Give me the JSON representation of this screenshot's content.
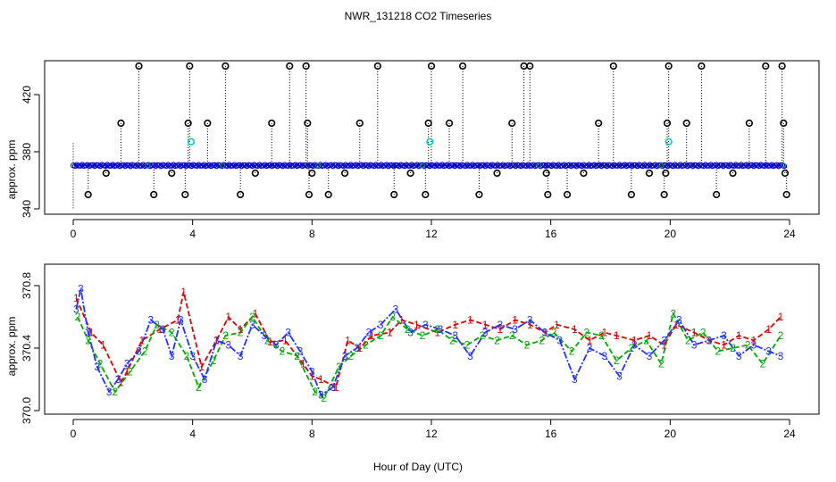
{
  "title": "NWR_131218  CO2 Timeseries",
  "xlabel": "Hour of Day (UTC)",
  "colors": {
    "black": "#000000",
    "blue": "#0000cc",
    "cyan": "#00cccc",
    "green": "#00aa00",
    "red": "#dd0000",
    "lineblue": "#2233ff"
  },
  "chart_data": [
    {
      "type": "scatter",
      "ylabel": "approx. ppm",
      "xlim": [
        0,
        24
      ],
      "ylim": [
        340,
        440
      ],
      "x_ticks": [
        "0",
        "4",
        "8",
        "12",
        "16",
        "20",
        "24"
      ],
      "y_ticks": [
        "340",
        "380",
        "420"
      ],
      "baseline": 370.4,
      "series": [
        {
          "points": [
            [
              0.5,
              350
            ],
            [
              1.1,
              365
            ],
            [
              1.6,
              400
            ],
            [
              2.2,
              440
            ],
            [
              2.7,
              350
            ],
            [
              3.3,
              365
            ],
            [
              3.75,
              350
            ],
            [
              3.85,
              400
            ],
            [
              3.9,
              440
            ],
            [
              4.5,
              400
            ],
            [
              5.1,
              440
            ],
            [
              5.6,
              350
            ],
            [
              6.1,
              365
            ],
            [
              6.65,
              400
            ],
            [
              7.25,
              440
            ],
            [
              7.8,
              440
            ],
            [
              7.85,
              400
            ],
            [
              7.9,
              350
            ],
            [
              8.0,
              365
            ],
            [
              8.55,
              350
            ],
            [
              9.1,
              365
            ],
            [
              9.6,
              400
            ],
            [
              10.2,
              440
            ],
            [
              10.75,
              350
            ],
            [
              11.3,
              365
            ],
            [
              11.8,
              350
            ],
            [
              11.9,
              400
            ],
            [
              12.0,
              440
            ],
            [
              12.6,
              400
            ],
            [
              13.05,
              440
            ],
            [
              13.6,
              350
            ],
            [
              14.2,
              365
            ],
            [
              14.7,
              400
            ],
            [
              15.1,
              440
            ],
            [
              15.3,
              440
            ],
            [
              15.85,
              365
            ],
            [
              15.9,
              350
            ],
            [
              16.55,
              350
            ],
            [
              17.1,
              365
            ],
            [
              17.6,
              400
            ],
            [
              18.1,
              440
            ],
            [
              18.7,
              350
            ],
            [
              19.3,
              365
            ],
            [
              19.8,
              350
            ],
            [
              19.85,
              365
            ],
            [
              19.9,
              400
            ],
            [
              19.95,
              440
            ],
            [
              20.55,
              400
            ],
            [
              21.05,
              440
            ],
            [
              21.55,
              350
            ],
            [
              22.1,
              365
            ],
            [
              22.65,
              400
            ],
            [
              23.2,
              440
            ],
            [
              23.75,
              440
            ],
            [
              23.8,
              400
            ],
            [
              23.85,
              365
            ],
            [
              23.9,
              350
            ]
          ]
        },
        {
          "points": [
            [
              3.95,
              387
            ],
            [
              11.95,
              387
            ],
            [
              19.95,
              387
            ]
          ]
        }
      ]
    },
    {
      "type": "line",
      "ylabel": "approx. ppm",
      "xlim": [
        0,
        24
      ],
      "ylim": [
        370.0,
        370.8
      ],
      "x_ticks": [
        "0",
        "4",
        "8",
        "12",
        "16",
        "20",
        "24"
      ],
      "y_ticks": [
        "370.0",
        "370.4",
        "370.8"
      ],
      "series": [
        {
          "name": "1",
          "x": [
            0.1,
            0.6,
            1.0,
            1.6,
            1.8,
            2.3,
            2.9,
            3.5,
            3.7,
            4.3,
            4.8,
            5.2,
            5.6,
            6.1,
            6.6,
            7.1,
            7.7,
            8.0,
            8.3,
            8.8,
            9.2,
            9.6,
            10.0,
            10.6,
            11.0,
            11.5,
            12.2,
            12.8,
            13.3,
            13.8,
            14.3,
            14.8,
            15.3,
            15.8,
            16.2,
            16.8,
            17.3,
            17.8,
            18.2,
            18.8,
            19.3,
            19.8,
            20.2,
            20.8,
            21.3,
            21.8,
            22.3,
            22.8,
            23.3,
            23.7
          ],
          "y": [
            370.72,
            370.5,
            370.42,
            370.18,
            370.25,
            370.45,
            370.52,
            370.58,
            370.76,
            370.28,
            370.45,
            370.6,
            370.52,
            370.62,
            370.44,
            370.45,
            370.3,
            370.22,
            370.2,
            370.15,
            370.45,
            370.4,
            370.48,
            370.5,
            370.58,
            370.55,
            370.5,
            370.55,
            370.58,
            370.55,
            370.52,
            370.58,
            370.55,
            370.5,
            370.55,
            370.52,
            370.45,
            370.5,
            370.48,
            370.45,
            370.48,
            370.42,
            370.55,
            370.5,
            370.45,
            370.42,
            370.48,
            370.45,
            370.52,
            370.6
          ]
        },
        {
          "name": "2",
          "x": [
            0.15,
            0.5,
            0.9,
            1.4,
            1.9,
            2.4,
            2.8,
            3.3,
            3.8,
            4.2,
            4.7,
            5.1,
            5.6,
            6.0,
            6.5,
            7.0,
            7.5,
            8.1,
            8.4,
            8.9,
            9.3,
            9.8,
            10.3,
            10.7,
            11.2,
            11.7,
            12.2,
            12.7,
            13.2,
            13.7,
            14.2,
            14.7,
            15.2,
            15.7,
            16.1,
            16.7,
            17.2,
            17.7,
            18.2,
            18.7,
            19.2,
            19.7,
            20.1,
            20.6,
            21.1,
            21.6,
            22.1,
            22.6,
            23.1,
            23.7
          ],
          "y": [
            370.6,
            370.45,
            370.3,
            370.12,
            370.25,
            370.38,
            370.55,
            370.5,
            370.35,
            370.15,
            370.32,
            370.48,
            370.5,
            370.6,
            370.45,
            370.38,
            370.35,
            370.12,
            370.08,
            370.28,
            370.35,
            370.42,
            370.48,
            370.6,
            370.52,
            370.48,
            370.52,
            370.45,
            370.42,
            370.48,
            370.45,
            370.48,
            370.42,
            370.45,
            370.5,
            370.38,
            370.5,
            370.48,
            370.32,
            370.4,
            370.45,
            370.3,
            370.62,
            370.45,
            370.5,
            370.38,
            370.4,
            370.42,
            370.3,
            370.48
          ]
        },
        {
          "name": "3",
          "x": [
            0.1,
            0.25,
            0.5,
            0.8,
            1.2,
            1.5,
            1.8,
            2.2,
            2.6,
            3.0,
            3.3,
            3.6,
            4.0,
            4.4,
            4.8,
            5.2,
            5.6,
            6.0,
            6.4,
            6.8,
            7.2,
            7.6,
            8.0,
            8.3,
            8.7,
            9.1,
            9.5,
            9.9,
            10.3,
            10.8,
            11.3,
            11.8,
            12.3,
            12.8,
            13.3,
            13.8,
            14.3,
            14.8,
            15.3,
            15.8,
            16.3,
            16.8,
            17.3,
            17.8,
            18.3,
            18.8,
            19.3,
            19.8,
            20.3,
            20.8,
            21.3,
            21.8,
            22.3,
            22.8,
            23.3,
            23.7
          ],
          "y": [
            370.65,
            370.78,
            370.5,
            370.28,
            370.12,
            370.2,
            370.3,
            370.38,
            370.58,
            370.52,
            370.35,
            370.58,
            370.35,
            370.2,
            370.45,
            370.42,
            370.35,
            370.55,
            370.48,
            370.42,
            370.5,
            370.38,
            370.25,
            370.1,
            370.15,
            370.35,
            370.4,
            370.5,
            370.55,
            370.65,
            370.5,
            370.55,
            370.52,
            370.48,
            370.35,
            370.5,
            370.55,
            370.52,
            370.58,
            370.5,
            370.45,
            370.2,
            370.4,
            370.35,
            370.22,
            370.42,
            370.35,
            370.45,
            370.58,
            370.42,
            370.45,
            370.48,
            370.35,
            370.42,
            370.38,
            370.35
          ]
        }
      ]
    }
  ]
}
